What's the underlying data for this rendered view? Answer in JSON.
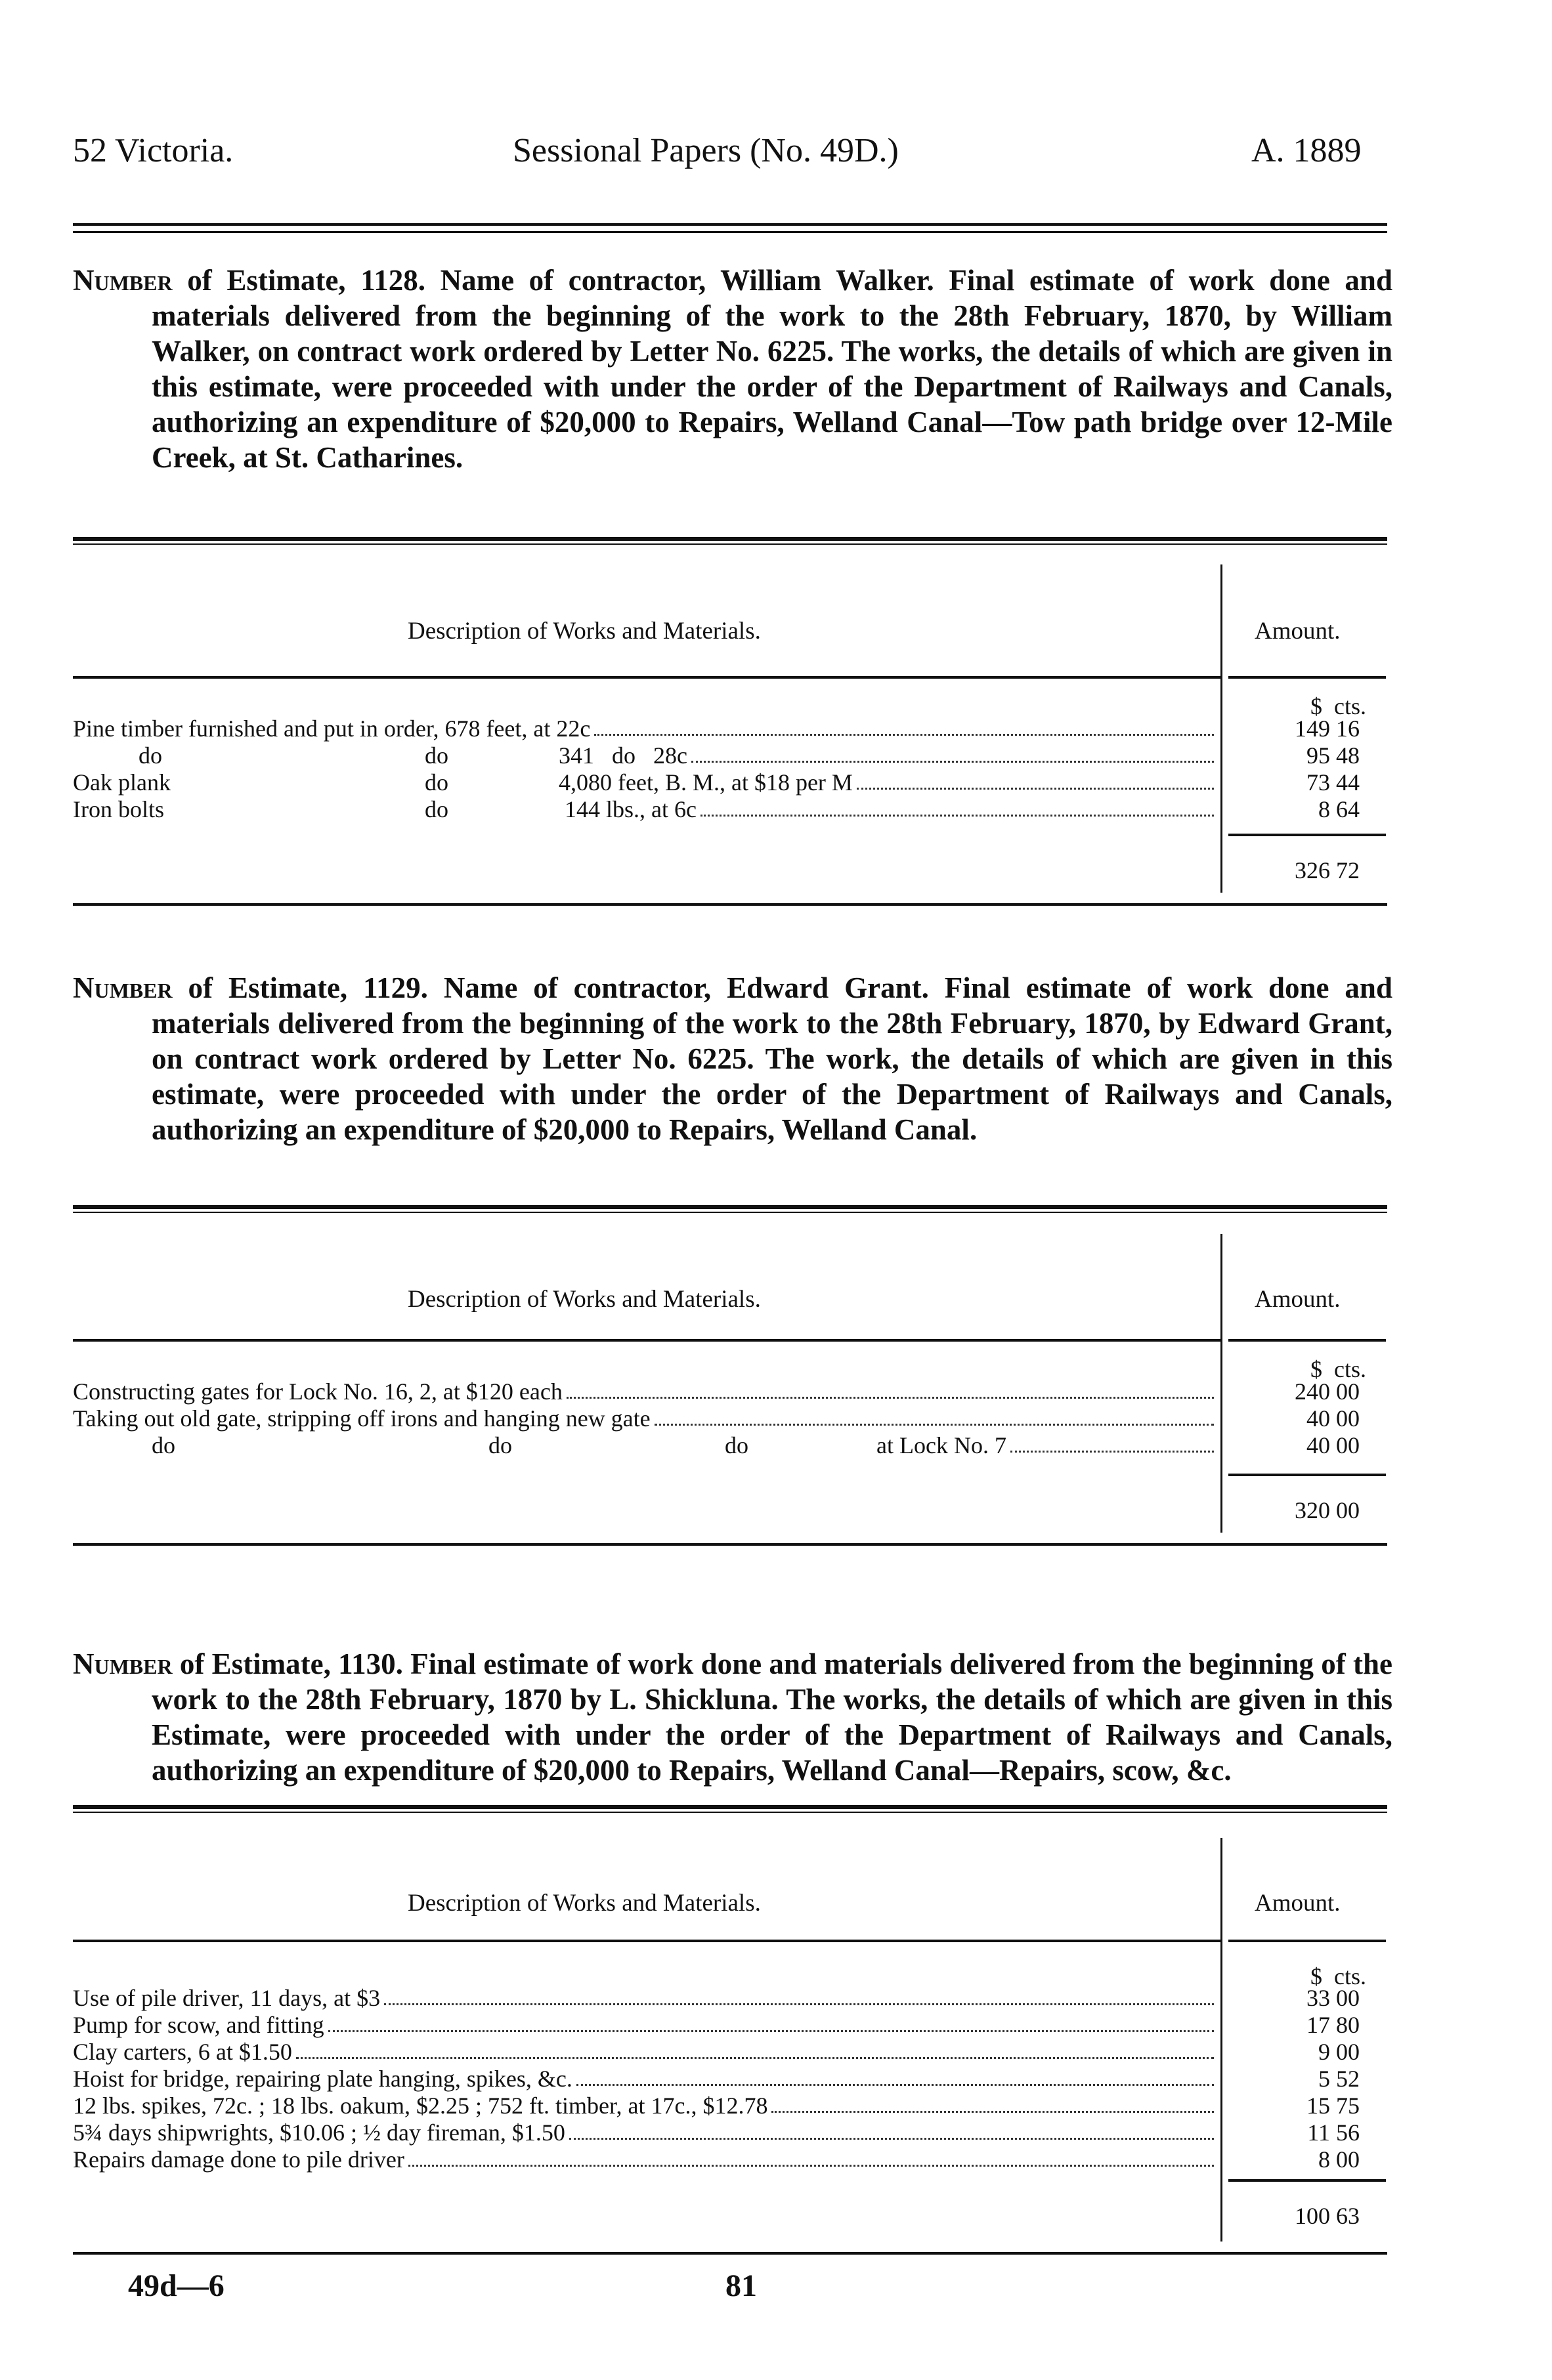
{
  "header": {
    "left": "52 Victoria.",
    "center": "Sessional Papers (No. 49D.)",
    "right": "A. 1889"
  },
  "estimates": [
    {
      "number_label": "Number",
      "text": " of Estimate, 1128. Name of contractor, William Walker. Final estimate of work done and materials delivered from the beginning of the work to the 28th February, 1870, by William Walker, on contract work ordered by Letter No. 6225. The works, the details of which are given in this estimate, were proceeded with under the order of the Department of Railways and Canals, authorizing an expenditure of $20,000 to Repairs, Welland Canal—Tow path bridge over 12-Mile Creek, at St. Catharines.",
      "col_desc": "Description of Works and Materials.",
      "col_amount": "Amount.",
      "units": "$  cts.",
      "rows": [
        {
          "parts": [
            "Pine timber furnished and put in order, 678 feet, at 22c"
          ],
          "amount": "149 16"
        },
        {
          "parts": [
            "",
            "do",
            "do",
            "341   do   28c"
          ],
          "amount": "95 48"
        },
        {
          "parts": [
            "Oak plank",
            "",
            "do",
            "4,080 feet, B. M., at $18 per M"
          ],
          "amount": "73 44"
        },
        {
          "parts": [
            "Iron bolts",
            "",
            "do",
            " 144 lbs., at 6c"
          ],
          "amount": "8 64"
        }
      ],
      "total": "326 72"
    },
    {
      "number_label": "Number",
      "text": " of Estimate, 1129. Name of contractor, Edward Grant. Final estimate of work done and materials delivered from the beginning of the work to the 28th February, 1870, by Edward Grant, on contract work ordered by Letter No. 6225. The work, the details of which are given in this estimate, were proceeded with under the order of the Department of Railways and Canals, authorizing an expenditure of $20,000 to Repairs, Welland Canal.",
      "col_desc": "Description of Works and Materials.",
      "col_amount": "Amount.",
      "units": "$  cts.",
      "rows": [
        {
          "parts": [
            "Constructing gates for Lock No. 16, 2, at $120 each"
          ],
          "amount": "240 00"
        },
        {
          "parts": [
            "Taking out old gate, stripping off irons and hanging new gate"
          ],
          "amount": "40 00"
        },
        {
          "parts": [
            "",
            "do",
            "do",
            "do",
            "at Lock No. 7"
          ],
          "amount": "40 00"
        }
      ],
      "total": "320 00"
    },
    {
      "number_label": "Number",
      "text": " of Estimate, 1130. Final estimate of work done and materials delivered from the beginning of the work to the 28th February, 1870 by L. Shickluna. The works, the details of which are given in this Estimate, were proceeded with under the order of the Department of Railways and Canals, authorizing an expenditure of $20,000 to Repairs, Welland Canal—Repairs, scow, &c.",
      "col_desc": "Description of Works and Materials.",
      "col_amount": "Amount.",
      "units": "$  cts.",
      "rows": [
        {
          "parts": [
            "Use of pile driver, 11 days, at $3"
          ],
          "amount": "33 00"
        },
        {
          "parts": [
            "Pump for scow, and fitting"
          ],
          "amount": "17 80"
        },
        {
          "parts": [
            "Clay carters, 6 at $1.50"
          ],
          "amount": "9 00"
        },
        {
          "parts": [
            "Hoist for bridge, repairing plate hanging, spikes, &c."
          ],
          "amount": "5 52"
        },
        {
          "parts": [
            "12 lbs. spikes, 72c. ; 18 lbs. oakum, $2.25 ; 752 ft. timber, at 17c., $12.78"
          ],
          "amount": "15 75"
        },
        {
          "parts": [
            "5¾ days shipwrights, $10.06 ; ½ day fireman, $1.50"
          ],
          "amount": "11 56"
        },
        {
          "parts": [
            "Repairs damage done to pile driver"
          ],
          "amount": "8 00"
        }
      ],
      "total": "100 63"
    }
  ],
  "footer": {
    "signature": "49d—6",
    "page": "81"
  }
}
